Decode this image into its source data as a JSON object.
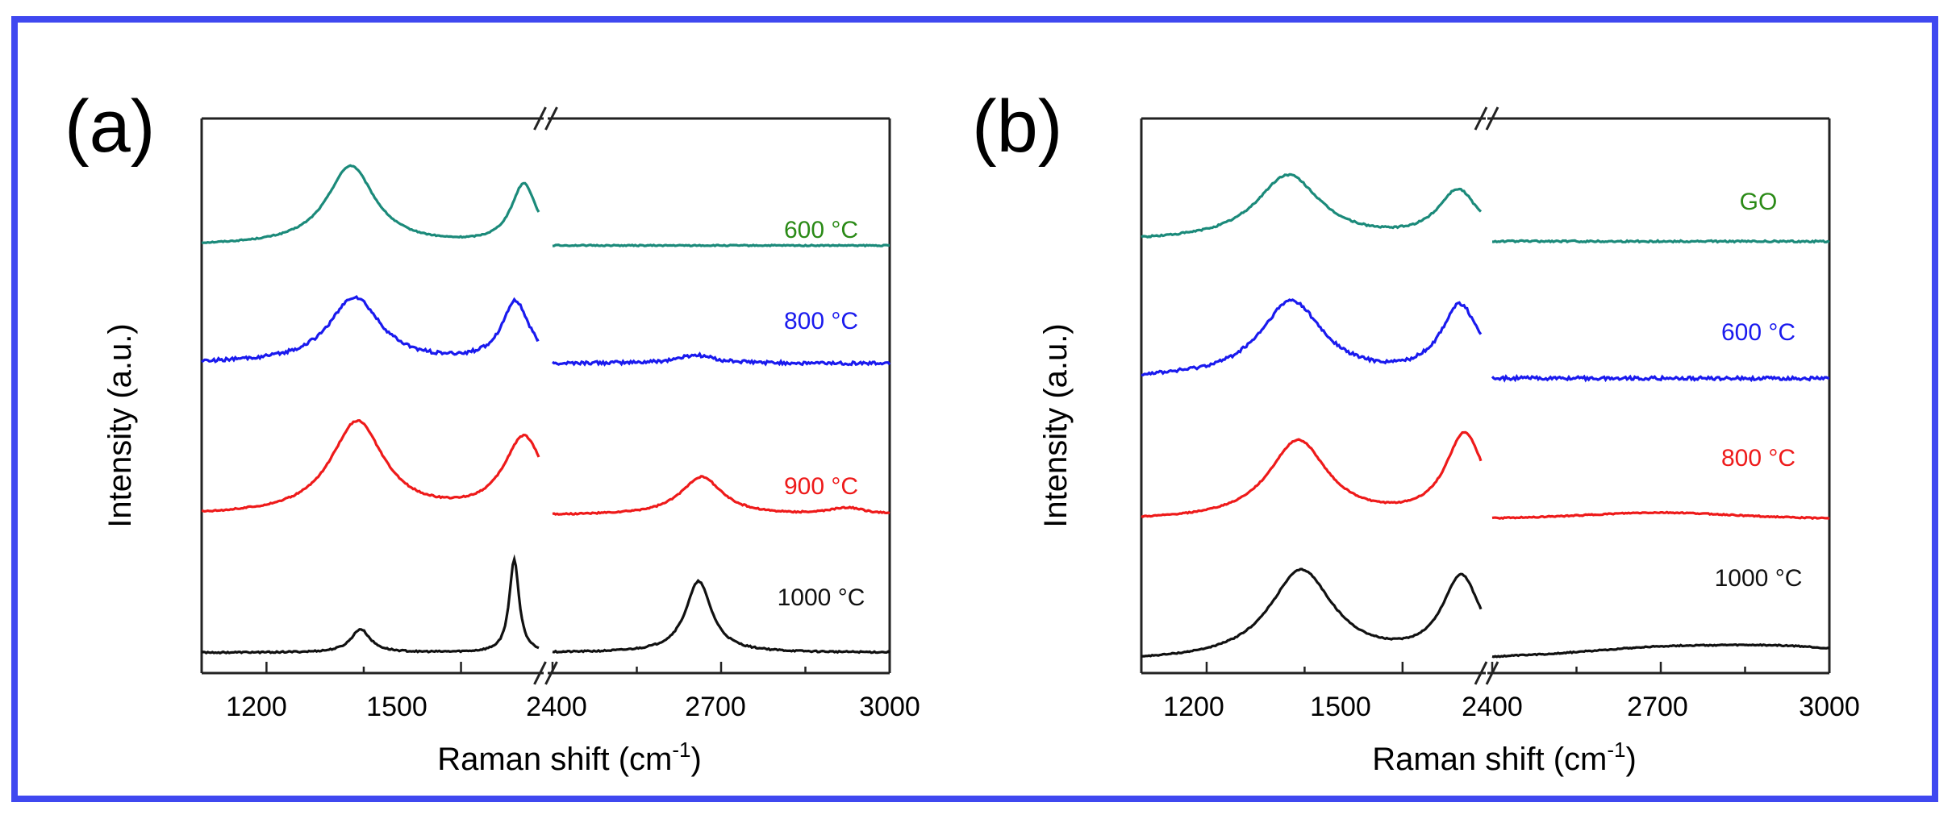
{
  "chart_data": [
    {
      "panel_label": "(a)",
      "type": "line",
      "xlabel": "Raman shift (cm",
      "xlabel_sup": "-1",
      "xlabel_close": ")",
      "ylabel": "Intensity (a.u.)",
      "x_segments": [
        {
          "range": [
            1100,
            1620
          ],
          "ticks": [
            "1200",
            "1500"
          ]
        },
        {
          "range": [
            2400,
            3000
          ],
          "ticks": [
            "2400",
            "2700",
            "3000"
          ]
        }
      ],
      "series": [
        {
          "name": "600 °C",
          "color": "#1b8a7a",
          "label_color": "#2a8a16",
          "baseline": 0.04,
          "offset": 3.05,
          "noise": 0.004,
          "peaks": [
            {
              "center": 1330,
              "height": 0.58,
              "width": 45
            },
            {
              "center": 1597,
              "height": 0.44,
              "width": 24
            },
            {
              "center": 2660,
              "height": 0.0,
              "width": 60
            }
          ]
        },
        {
          "name": "800 °C",
          "color": "#1a1aee",
          "label_color": "#1a1aee",
          "baseline": 0.03,
          "offset": 2.2,
          "noise": 0.012,
          "peaks": [
            {
              "center": 1336,
              "height": 0.48,
              "width": 48
            },
            {
              "center": 1584,
              "height": 0.44,
              "width": 26
            },
            {
              "center": 2655,
              "height": 0.06,
              "width": 40
            }
          ]
        },
        {
          "name": "900 °C",
          "color": "#ee1a1a",
          "label_color": "#ee1a1a",
          "baseline": 0.02,
          "offset": 1.1,
          "noise": 0.005,
          "peaks": [
            {
              "center": 1340,
              "height": 0.68,
              "width": 50
            },
            {
              "center": 1597,
              "height": 0.56,
              "width": 38
            },
            {
              "center": 2665,
              "height": 0.28,
              "width": 45
            },
            {
              "center": 2925,
              "height": 0.05,
              "width": 40
            }
          ]
        },
        {
          "name": "1000 °C",
          "color": "#111111",
          "label_color": "#111111",
          "baseline": 0.0,
          "offset": 0.12,
          "noise": 0.005,
          "peaks": [
            {
              "center": 1345,
              "height": 0.17,
              "width": 18
            },
            {
              "center": 1582,
              "height": 0.68,
              "width": 9
            },
            {
              "center": 2660,
              "height": 0.52,
              "width": 28
            }
          ]
        }
      ]
    },
    {
      "panel_label": "(b)",
      "type": "line",
      "xlabel": "Raman shift (cm",
      "xlabel_sup": "-1",
      "xlabel_close": ")",
      "ylabel": "Intensity (a.u.)",
      "x_segments": [
        {
          "range": [
            1100,
            1620
          ],
          "ticks": [
            "1200",
            "1500"
          ]
        },
        {
          "range": [
            2400,
            3000
          ],
          "ticks": [
            "2400",
            "2700",
            "3000"
          ]
        }
      ],
      "series": [
        {
          "name": "GO",
          "color": "#1b8a7a",
          "label_color": "#2a8a16",
          "baseline": 0.02,
          "offset": 3.1,
          "noise": 0.006,
          "peaks": [
            {
              "center": 1325,
              "height": 0.48,
              "width": 60
            },
            {
              "center": 1585,
              "height": 0.36,
              "width": 38
            }
          ]
        },
        {
          "name": "600 °C",
          "color": "#1a1aee",
          "label_color": "#1a1aee",
          "baseline": 0.02,
          "offset": 2.1,
          "noise": 0.012,
          "peaks": [
            {
              "center": 1330,
              "height": 0.56,
              "width": 58
            },
            {
              "center": 1588,
              "height": 0.52,
              "width": 36
            }
          ]
        },
        {
          "name": "800 °C",
          "color": "#ee1a1a",
          "label_color": "#ee1a1a",
          "baseline": 0.03,
          "offset": 1.05,
          "noise": 0.004,
          "peaks": [
            {
              "center": 1340,
              "height": 0.58,
              "width": 55
            },
            {
              "center": 1595,
              "height": 0.62,
              "width": 36
            },
            {
              "center": 2700,
              "height": 0.06,
              "width": 200
            }
          ]
        },
        {
          "name": "1000 °C",
          "color": "#111111",
          "label_color": "#111111",
          "baseline": 0.0,
          "offset": 0.05,
          "noise": 0.004,
          "peaks": [
            {
              "center": 1345,
              "height": 0.66,
              "width": 60
            },
            {
              "center": 1590,
              "height": 0.6,
              "width": 36
            },
            {
              "center": 2700,
              "height": 0.08,
              "width": 220
            },
            {
              "center": 2930,
              "height": 0.08,
              "width": 200
            }
          ]
        }
      ]
    }
  ]
}
